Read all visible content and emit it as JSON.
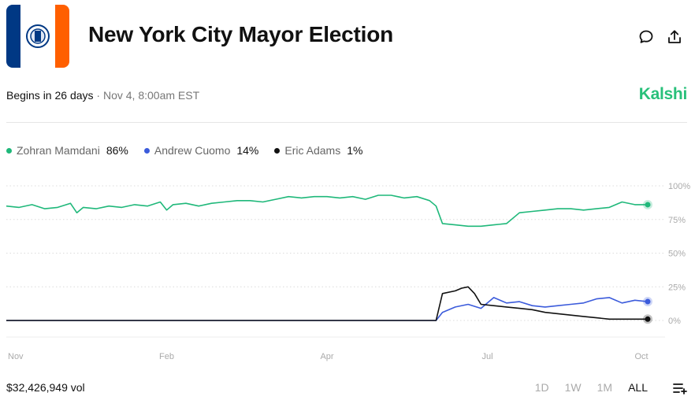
{
  "header": {
    "title": "New York City Mayor Election",
    "comment_icon": "comment-icon",
    "share_icon": "share-icon",
    "flag_colors": [
      "#003884",
      "#ffffff",
      "#ff5f00"
    ]
  },
  "status": {
    "begins": "Begins in 26 days",
    "separator": " · ",
    "datetime": "Nov 4, 8:00am EST",
    "brand": "Kalshi"
  },
  "legend": [
    {
      "name": "Zohran Mamdani",
      "value": "86%",
      "color": "#1fb87a"
    },
    {
      "name": "Andrew Cuomo",
      "value": "14%",
      "color": "#3b5bdb"
    },
    {
      "name": "Eric Adams",
      "value": "1%",
      "color": "#111111"
    }
  ],
  "chart_data": {
    "type": "line",
    "y_ticks": [
      "100%",
      "75%",
      "50%",
      "25%",
      "0%"
    ],
    "ylim": [
      0,
      100
    ],
    "x_ticks": [
      "Nov",
      "Feb",
      "Apr",
      "Jul",
      "Oct"
    ],
    "x_tick_positions": [
      0,
      0.25,
      0.5,
      0.75,
      1.0
    ],
    "series": [
      {
        "name": "Zohran Mamdani",
        "color": "#1fb87a",
        "x": [
          0,
          0.02,
          0.04,
          0.06,
          0.08,
          0.1,
          0.11,
          0.12,
          0.14,
          0.16,
          0.18,
          0.2,
          0.22,
          0.24,
          0.25,
          0.26,
          0.28,
          0.3,
          0.32,
          0.34,
          0.36,
          0.38,
          0.4,
          0.42,
          0.44,
          0.46,
          0.48,
          0.5,
          0.52,
          0.54,
          0.56,
          0.58,
          0.6,
          0.62,
          0.64,
          0.66,
          0.67,
          0.68,
          0.7,
          0.72,
          0.74,
          0.76,
          0.78,
          0.8,
          0.82,
          0.84,
          0.86,
          0.88,
          0.9,
          0.92,
          0.94,
          0.96,
          0.98,
          1.0
        ],
        "values": [
          85,
          84,
          86,
          83,
          84,
          87,
          80,
          84,
          83,
          85,
          84,
          86,
          85,
          88,
          82,
          86,
          87,
          85,
          87,
          88,
          89,
          89,
          88,
          90,
          92,
          91,
          92,
          92,
          91,
          92,
          90,
          93,
          93,
          91,
          92,
          89,
          85,
          72,
          71,
          70,
          70,
          71,
          72,
          80,
          81,
          82,
          83,
          83,
          82,
          83,
          84,
          88,
          86,
          86
        ]
      },
      {
        "name": "Andrew Cuomo",
        "color": "#3b5bdb",
        "x": [
          0,
          0.67,
          0.68,
          0.7,
          0.72,
          0.74,
          0.76,
          0.78,
          0.8,
          0.82,
          0.84,
          0.86,
          0.88,
          0.9,
          0.92,
          0.94,
          0.96,
          0.98,
          1.0
        ],
        "values": [
          0,
          0,
          6,
          10,
          12,
          9,
          17,
          13,
          14,
          11,
          10,
          11,
          12,
          13,
          16,
          17,
          13,
          15,
          14
        ]
      },
      {
        "name": "Eric Adams",
        "color": "#111111",
        "x": [
          0,
          0.67,
          0.68,
          0.7,
          0.71,
          0.72,
          0.73,
          0.74,
          0.76,
          0.78,
          0.8,
          0.82,
          0.84,
          0.86,
          0.88,
          0.9,
          0.92,
          0.94,
          0.96,
          0.98,
          1.0
        ],
        "values": [
          0,
          0,
          20,
          22,
          24,
          25,
          20,
          12,
          11,
          10,
          9,
          8,
          6,
          5,
          4,
          3,
          2,
          1,
          1,
          1,
          1
        ]
      }
    ],
    "end_values": [
      86,
      14,
      1
    ]
  },
  "footer": {
    "volume": "$32,426,949 vol",
    "ranges": [
      "1D",
      "1W",
      "1M",
      "ALL"
    ],
    "active_range": "ALL",
    "menu_icon": "add-list-icon"
  }
}
